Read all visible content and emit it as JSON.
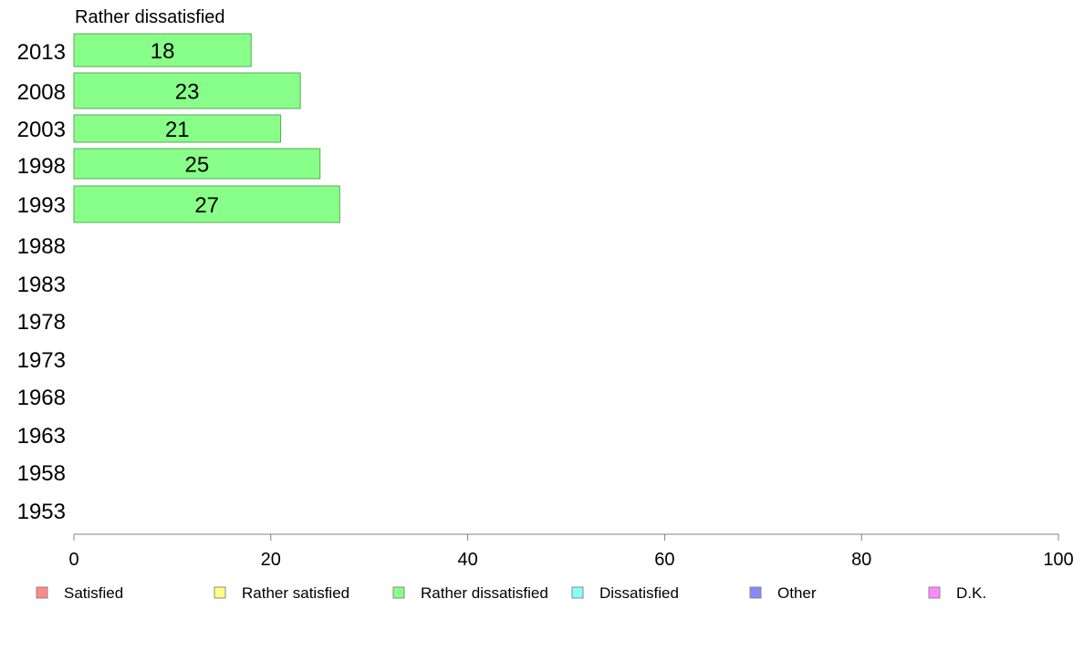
{
  "chart_data": {
    "type": "bar",
    "orientation": "horizontal",
    "title": "Rather dissatisfied",
    "categories": [
      "2013",
      "2008",
      "2003",
      "1998",
      "1993",
      "1988",
      "1983",
      "1978",
      "1973",
      "1968",
      "1963",
      "1958",
      "1953"
    ],
    "series": [
      {
        "name": "Rather dissatisfied",
        "color": "#88ff88",
        "values": [
          18,
          23,
          21,
          25,
          27,
          null,
          null,
          null,
          null,
          null,
          null,
          null,
          null
        ]
      }
    ],
    "xlim": [
      0,
      100
    ],
    "xticks": [
      0,
      20,
      40,
      60,
      80,
      100
    ],
    "grid": false,
    "legend_position": "bottom",
    "legend": [
      {
        "label": "Satisfied",
        "color": "#ff8888"
      },
      {
        "label": "Rather satisfied",
        "color": "#ffff88"
      },
      {
        "label": "Rather dissatisfied",
        "color": "#88ff88"
      },
      {
        "label": "Dissatisfied",
        "color": "#88ffff"
      },
      {
        "label": "Other",
        "color": "#8888ff"
      },
      {
        "label": "D.K.",
        "color": "#ff88ff"
      }
    ]
  }
}
